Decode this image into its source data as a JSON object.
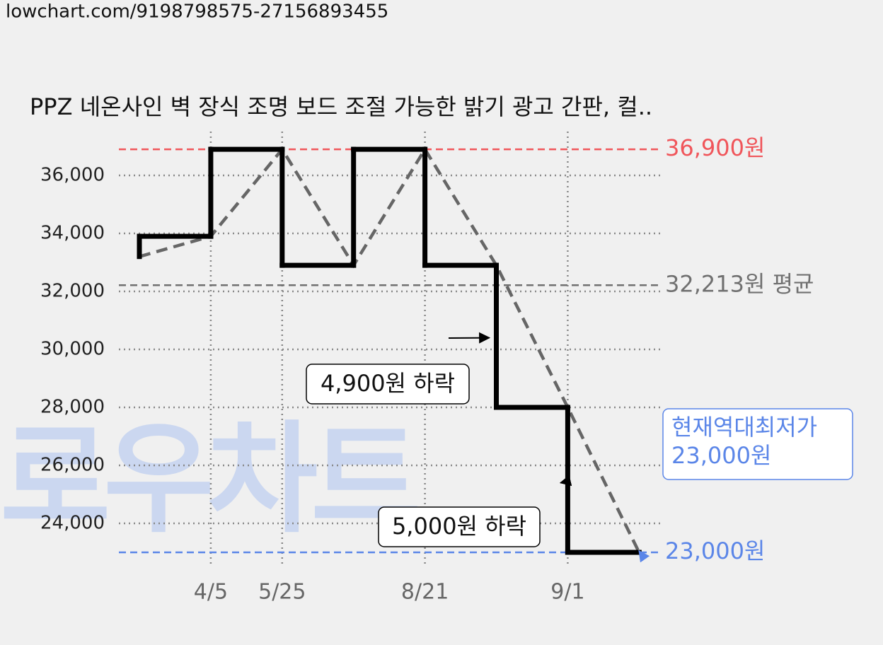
{
  "header": "lowchart.com/9198798575-27156893455",
  "chart_data": {
    "type": "step-line",
    "title": "PPZ 네온사인 벽 장식 조명 보드 조절 가능한 밝기 광고 간판, 컬..",
    "watermark": "로우차트",
    "categories": [
      null,
      "4/5",
      "5/25",
      null,
      "8/21",
      null,
      "9/1",
      null
    ],
    "series": [
      {
        "color": "#000000",
        "trend_color": "#666666",
        "values": [
          33200,
          33900,
          36900,
          32900,
          36900,
          32900,
          28000,
          23000
        ]
      }
    ],
    "ylim": [
      22500,
      37500
    ],
    "yticks": [
      {
        "value": 24000,
        "label": "24,000"
      },
      {
        "value": 26000,
        "label": "26,000"
      },
      {
        "value": 28000,
        "label": "28,000"
      },
      {
        "value": 30000,
        "label": "30,000"
      },
      {
        "value": 32000,
        "label": "32,000"
      },
      {
        "value": 34000,
        "label": "34,000"
      },
      {
        "value": 36000,
        "label": "36,000"
      }
    ],
    "grid": true,
    "reference_lines": [
      {
        "value": 36900,
        "label": "36,900원",
        "color": "#f0555a"
      },
      {
        "value": 32213,
        "label": "32,213원 평균",
        "color": "#707070"
      },
      {
        "value": 23000,
        "label": "23,000원",
        "color": "#5b86e8"
      }
    ],
    "annotations": [
      {
        "text": "4,900원 하락",
        "at": 5,
        "value": 30400
      },
      {
        "text": "5,000원 하락",
        "at": 6,
        "value": 25400
      },
      {
        "lines": [
          "현재역대최저가",
          "23,000원"
        ],
        "at": 7,
        "value": 23000,
        "color": "#5b86e8"
      }
    ]
  }
}
